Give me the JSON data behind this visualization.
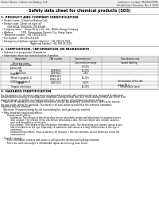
{
  "header_left": "Product Name: Lithium Ion Battery Cell",
  "header_right_line1": "Substance number: M206023SPN",
  "header_right_line2": "Established / Revision: Dec.1 2010",
  "title": "Safety data sheet for chemical products (SDS)",
  "section1_title": "1. PRODUCT AND COMPANY IDENTIFICATION",
  "section1_lines": [
    "  • Product name: Lithium Ion Battery Cell",
    "  • Product code: Cylindrical-type cell",
    "         (UR18650A, UR18650U, UR18650A)",
    "  • Company name:    Sanyo Electric Co., Ltd., Mobile Energy Company",
    "  • Address:           2201, Kannondaira, Sumoto-City, Hyogo, Japan",
    "  • Telephone number:  +81-799-26-4111",
    "  • Fax number:  +81-799-26-4129",
    "  • Emergency telephone number (daytime): +81-799-26-3962",
    "                                          (Night and holiday): +81-799-26-4101"
  ],
  "section2_title": "2. COMPOSITION / INFORMATION ON INGREDIENTS",
  "section2_sub1": "  • Substance or preparation: Preparation",
  "section2_sub2": "  • Information about the chemical nature of product:",
  "table_headers": [
    "Component",
    "CAS number",
    "Concentration /\nConcentration range",
    "Classification and\nhazard labeling"
  ],
  "table_rows": [
    [
      "Beverage name",
      "",
      "",
      ""
    ],
    [
      "Lithium cobalt oxide\n(LiMnCoO4)",
      "",
      "30-50%",
      ""
    ],
    [
      "Iron",
      "7439-89-6",
      "15-25%",
      "-"
    ],
    [
      "Aluminum",
      "7429-90-5",
      "2-6%",
      "-"
    ],
    [
      "Graphite\n(Metal in graphite-1)\n(UR18e graphite-1)",
      "17068-42-5\n17069-44-2",
      "10-20%",
      ""
    ],
    [
      "Copper",
      "7440-50-8",
      "5-15%",
      "Sensitization of the skin\ngroup No.2"
    ],
    [
      "Organic electrolyte",
      "",
      "10-20%",
      "Inflammable liquid"
    ]
  ],
  "section3_title": "3. HAZARDS IDENTIFICATION",
  "section3_lines": [
    "For the battery cell, chemical substances are stored in a hermetically sealed metal case, designed to withstand",
    "temperatures occurring in everyday-use conditions. During normal use, as a result, during normal use, there is no",
    "physical danger of ignition or explosion and there is no danger of hazardous materials leakage.",
    "    However, if exposed to a fire, added mechanical shocks, decomposed, shorted electric wires or by misuse,",
    "the gas inside cannot be operated. The battery cell case will be breached at the extreme, hazardous",
    "materials may be released.",
    "    Moreover, if heated strongly by the surrounding fire, emit gas may be emitted.",
    "",
    "  • Most important hazard and effects:",
    "         Human health effects:",
    "              Inhalation: The release of the electrolyte has an anesthetic action and stimulates in respiratory tract.",
    "              Skin contact: The release of the electrolyte stimulates a skin. The electrolyte skin contact causes a",
    "              sore and stimulation on the skin.",
    "              Eye contact: The release of the electrolyte stimulates eyes. The electrolyte eye contact causes a sore",
    "              and stimulation on the eye. Especially, a substance that causes a strong inflammation of the eye is",
    "              contained.",
    "              Environmental effects: Since a battery cell remains in the environment, do not throw out it into the",
    "              environment.",
    "",
    "  • Specific hazards:",
    "         If the electrolyte contacts with water, it will generate detrimental hydrogen fluoride.",
    "         Since the used electrolyte is inflammable liquid, do not bring close to fire."
  ],
  "bg_color": "#ffffff",
  "text_color": "#000000",
  "header_bg": "#eeeeee",
  "table_header_bg": "#dddddd",
  "border_color": "#999999",
  "line_color": "#aaaaaa"
}
